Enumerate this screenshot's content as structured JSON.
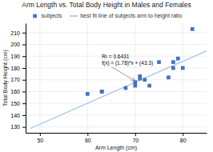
{
  "chart_data": {
    "type": "scatter",
    "title": "Arm Length vs. Total Body Height in Males and Females",
    "x_label": "Arm Length (cm)",
    "y_label": "Total Body Height (cm)",
    "series": [
      {
        "name": "subjects",
        "type": "scatter",
        "color": "#4472c4",
        "marker": "square",
        "x": [
          60,
          63,
          63,
          68,
          70,
          70,
          71,
          71,
          72,
          73,
          75,
          77,
          78,
          78,
          79,
          80,
          82
        ],
        "values": [
          158,
          160,
          160,
          163,
          168,
          165,
          171,
          173,
          170,
          165,
          185,
          172,
          180,
          185,
          188,
          180,
          213
        ]
      },
      {
        "name": "best fit line of subjects arm to height ratio",
        "type": "line",
        "color": "#9dc3e6",
        "x": [
          48,
          85
        ],
        "values": [
          128.74,
          194.6
        ]
      }
    ],
    "annotations": [
      {
        "text": [
          "R² = 0.6431",
          "f(x) = (1.78)*x + (43.3)"
        ],
        "x": 63,
        "y": 192,
        "arrow_x": 70,
        "arrow_y": 169
      }
    ],
    "xlim": [
      47,
      85
    ],
    "ylim": [
      125,
      218
    ],
    "xticks": [
      50,
      60,
      70,
      80
    ],
    "yticks": [
      130,
      140,
      150,
      160,
      170,
      180,
      190,
      200,
      210
    ],
    "grid": true,
    "legend": "top"
  }
}
